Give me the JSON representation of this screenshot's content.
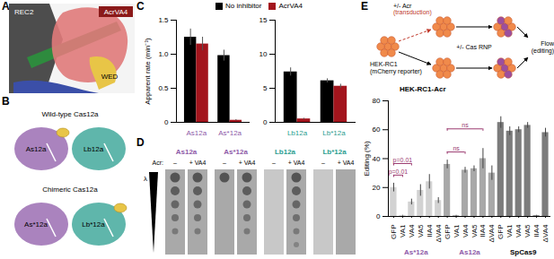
{
  "panel_labels": [
    "A",
    "B",
    "C",
    "D",
    "E"
  ],
  "panel_a": {
    "labels": [
      "REC2",
      "AcrVA4",
      "WED"
    ]
  },
  "panel_b": {
    "rows": [
      {
        "title": "Wild-type Cas12a",
        "proteins": [
          "As12a",
          "Lb12a"
        ]
      },
      {
        "title": "Chimeric Cas12a",
        "proteins": [
          "As*12a",
          "Lb*12a"
        ]
      }
    ]
  },
  "panel_d": {
    "acr_label": "Acr:",
    "dilution_label": "λ",
    "enzymes": [
      "As12a",
      "As*12a",
      "Lb12a",
      "Lb*12a"
    ],
    "conditions": [
      "–",
      "+ VA4"
    ],
    "spots": [
      [
        5,
        5
      ],
      [
        1,
        5
      ],
      [
        0,
        6
      ],
      [
        0,
        0
      ]
    ]
  },
  "panel_e": {
    "diagram": {
      "acr": [
        "+/- Acr",
        "(transduction)"
      ],
      "cas": "+/- Cas RNP",
      "flow": [
        "Flow",
        "(editing)"
      ],
      "cells": [
        "HEK-RC1",
        "(mCherry reporter)"
      ]
    }
  },
  "chart_data": [
    {
      "type": "bar",
      "ylabel": "Apparent rate (min⁻¹)",
      "legend": "top",
      "categories": [
        "As12a",
        "As*12a"
      ],
      "series": [
        {
          "name": "No inhibitor",
          "color": "#000000",
          "values": [
            1.25,
            0.98
          ],
          "errors": [
            0.12,
            0.08
          ]
        },
        {
          "name": "AcrVA4",
          "color": "#a3151d",
          "values": [
            1.15,
            0.03
          ],
          "errors": [
            0.1,
            0.01
          ]
        }
      ],
      "ylim": [
        0,
        1.5
      ],
      "yticks": [
        0,
        0.5,
        {
          "value": 1,
          "label": "1.0"
        },
        1.5
      ]
    },
    {
      "type": "bar",
      "categories": [
        "Lb12a",
        "Lb*12a"
      ],
      "series": [
        {
          "name": "No inhibitor",
          "color": "#000000",
          "values": [
            7.4,
            6.1
          ],
          "errors": [
            0.6,
            0.3
          ]
        },
        {
          "name": "AcrVA4",
          "color": "#a3151d",
          "values": [
            0.5,
            5.3
          ],
          "errors": [
            0.1,
            0.3
          ]
        }
      ],
      "ylim": [
        0,
        15
      ],
      "yticks": [
        0,
        5,
        10,
        15
      ]
    },
    {
      "type": "bar",
      "title": "HEK-RC1-Acr",
      "ylabel": "Editing (%)",
      "categories": [
        "GFP",
        "VA1",
        "VA4",
        "VA5",
        "IIA4",
        "ΔVA4",
        "GFP",
        "VA1",
        "VA4",
        "VA5",
        "IIA4",
        "ΔVA4",
        "GFP",
        "VA1",
        "VA4",
        "VA5",
        "IIA4",
        "ΔVA4"
      ],
      "group": [
        "As*12a",
        "As*12a",
        "As*12a",
        "As*12a",
        "As*12a",
        "As*12a",
        "As12a",
        "As12a",
        "As12a",
        "As12a",
        "As12a",
        "As12a",
        "SpCas9",
        "SpCas9",
        "SpCas9",
        "SpCas9",
        "SpCas9",
        "SpCas9"
      ],
      "values": [
        20,
        0.5,
        10,
        18,
        24,
        11,
        36,
        0.5,
        32,
        33,
        40,
        30,
        65,
        59,
        60,
        63,
        0.5,
        58
      ],
      "errors": [
        3,
        0.3,
        2,
        4,
        5,
        2,
        3,
        0.3,
        2,
        2,
        7,
        5,
        4,
        3,
        2,
        2,
        0.3,
        3
      ],
      "colors": [
        "#d2d2d2",
        "#d2d2d2",
        "#d2d2d2",
        "#d2d2d2",
        "#d2d2d2",
        "#d2d2d2",
        "#a8a8a8",
        "#a8a8a8",
        "#a8a8a8",
        "#a8a8a8",
        "#a8a8a8",
        "#a8a8a8",
        "#7c7c7c",
        "#7c7c7c",
        "#7c7c7c",
        "#7c7c7c",
        "#7c7c7c",
        "#7c7c7c"
      ],
      "annotations": [
        {
          "text": "p=0.01",
          "between": [
            0,
            1
          ]
        },
        {
          "text": "p=0.01",
          "between": [
            0,
            2
          ]
        },
        {
          "text": "ns",
          "between": [
            6,
            8
          ]
        },
        {
          "text": "ns",
          "between": [
            6,
            10
          ]
        }
      ],
      "ylim": [
        0,
        80
      ],
      "yticks": [
        0,
        20,
        40,
        60,
        80
      ]
    }
  ]
}
